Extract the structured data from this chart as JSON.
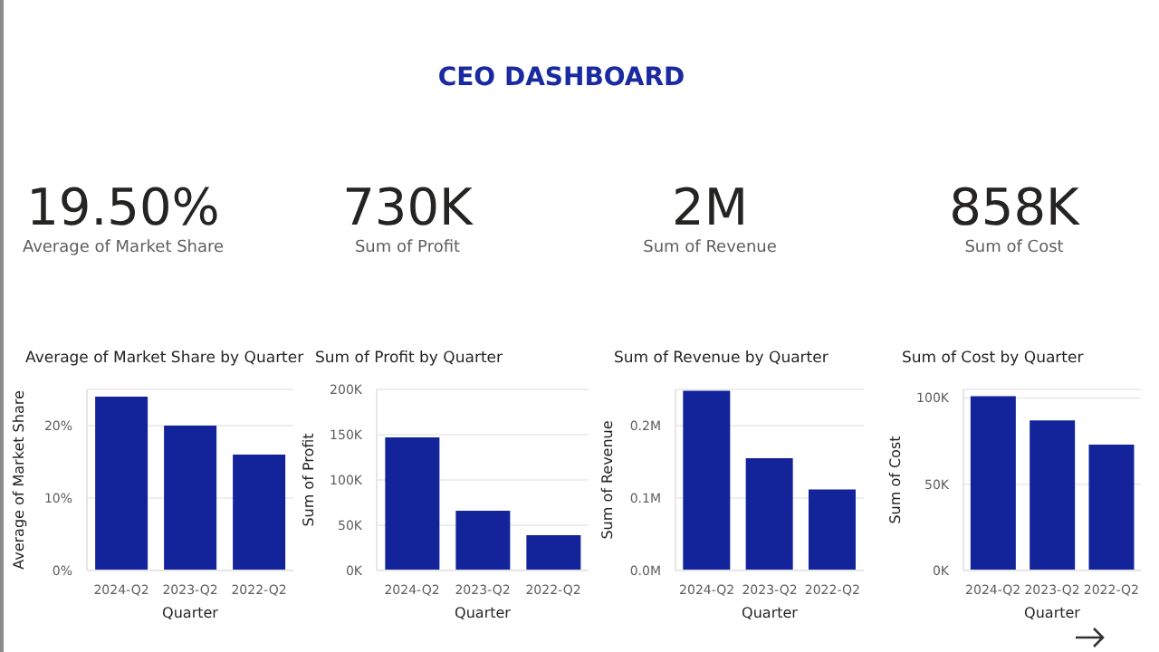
{
  "chart_data": [
    {
      "type": "other",
      "title": "CEO DASHBOARD"
    },
    {
      "type": "other",
      "annotations": [
        "19.50%",
        "Average of Market Share"
      ]
    },
    {
      "type": "other",
      "annotations": [
        "730K",
        "Sum of Profit"
      ]
    },
    {
      "type": "other",
      "annotations": [
        "2M",
        "Sum of Revenue"
      ]
    },
    {
      "type": "other",
      "annotations": [
        "858K",
        "Sum of Cost"
      ]
    },
    {
      "type": "bar",
      "title": "Average of Market Share by Quarter",
      "xlabel": "Quarter",
      "ylabel": "Average of Market Share",
      "categories": [
        "2024-Q2",
        "2023-Q2",
        "2022-Q2"
      ],
      "values": [
        24,
        20,
        16
      ],
      "color": "#13239a",
      "ylim": [
        0,
        25
      ],
      "yticks": [
        {
          "value": 0,
          "label": "0%"
        },
        {
          "value": 10,
          "label": "10%"
        },
        {
          "value": 20,
          "label": "20%"
        }
      ],
      "grid": "y"
    },
    {
      "type": "bar",
      "title": "Sum of Profit by Quarter",
      "xlabel": "Quarter",
      "ylabel": "Sum of Profit",
      "categories": [
        "2024-Q2",
        "2023-Q2",
        "2022-Q2"
      ],
      "values": [
        147000,
        66000,
        39000
      ],
      "color": "#13239a",
      "ylim": [
        0,
        200000
      ],
      "yticks": [
        {
          "value": 0,
          "label": "0K"
        },
        {
          "value": 50000,
          "label": "50K"
        },
        {
          "value": 100000,
          "label": "100K"
        },
        {
          "value": 150000,
          "label": "150K"
        },
        {
          "value": 200000,
          "label": "200K"
        }
      ],
      "grid": "y"
    },
    {
      "type": "bar",
      "title": "Sum of Revenue by Quarter",
      "xlabel": "Quarter",
      "ylabel": "Sum of Revenue",
      "categories": [
        "2024-Q2",
        "2023-Q2",
        "2022-Q2"
      ],
      "values": [
        248000,
        155000,
        112000
      ],
      "color": "#13239a",
      "ylim": [
        0,
        250000
      ],
      "yticks": [
        {
          "value": 0,
          "label": "0.0M"
        },
        {
          "value": 100000,
          "label": "0.1M"
        },
        {
          "value": 200000,
          "label": "0.2M"
        }
      ],
      "grid": "y"
    },
    {
      "type": "bar",
      "title": "Sum of Cost by Quarter",
      "xlabel": "Quarter",
      "ylabel": "Sum of Cost",
      "categories": [
        "2024-Q2",
        "2023-Q2",
        "2022-Q2"
      ],
      "values": [
        101000,
        87000,
        73000
      ],
      "color": "#13239a",
      "ylim": [
        0,
        105000
      ],
      "yticks": [
        {
          "value": 0,
          "label": "0K"
        },
        {
          "value": 50000,
          "label": "50K"
        },
        {
          "value": 100000,
          "label": "100K"
        }
      ],
      "grid": "y"
    }
  ]
}
